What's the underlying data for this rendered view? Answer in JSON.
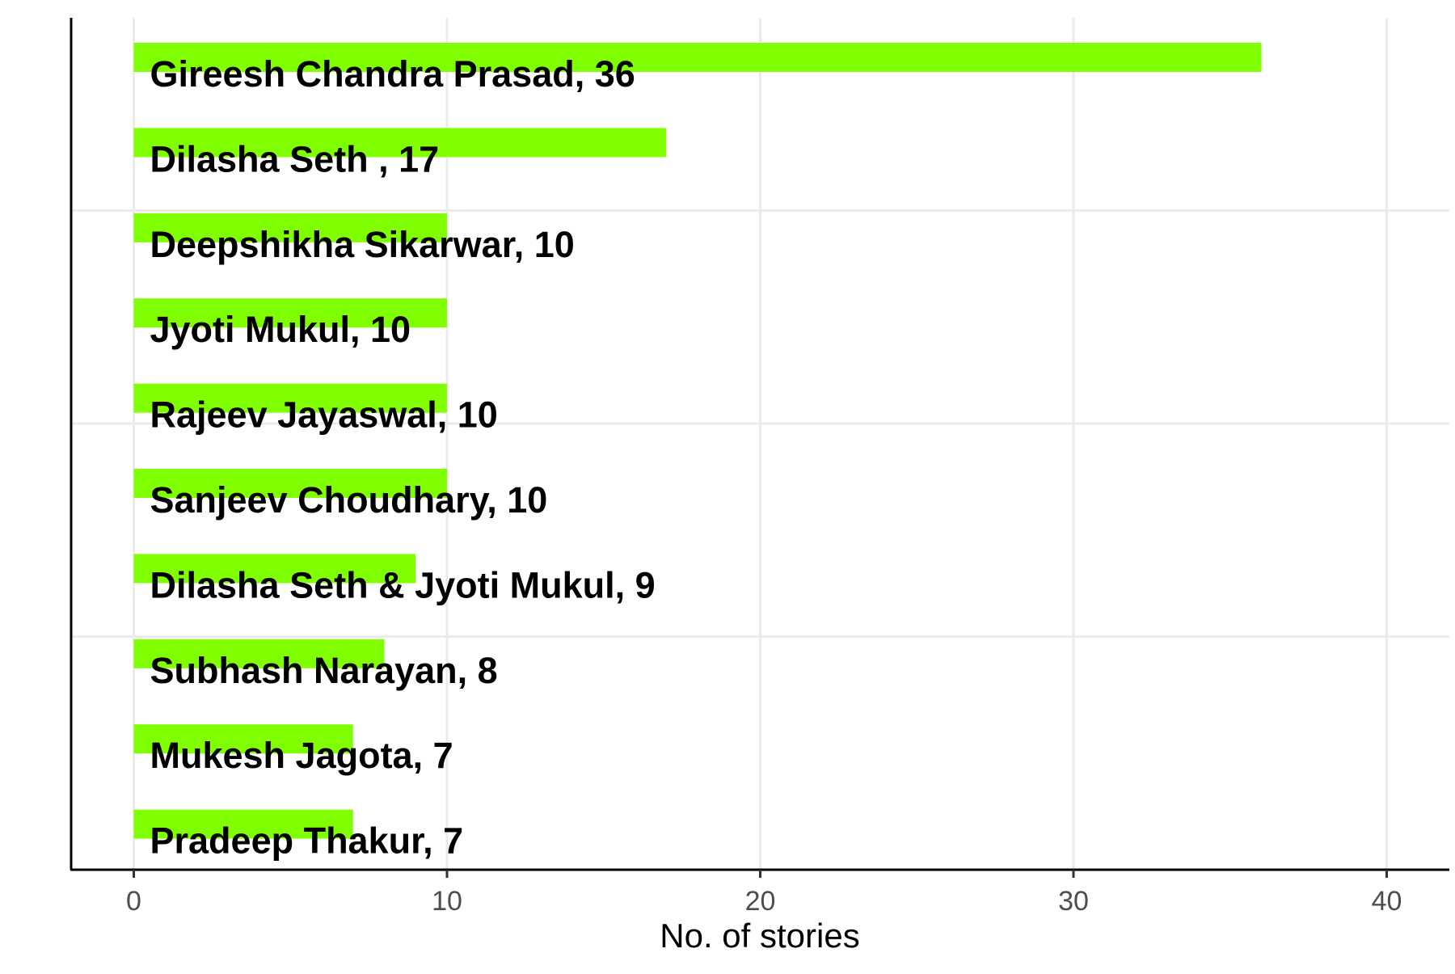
{
  "chart_data": {
    "type": "bar",
    "orientation": "horizontal",
    "categories": [
      "Gireesh Chandra Prasad",
      "Dilasha Seth ",
      "Deepshikha Sikarwar",
      "Jyoti Mukul",
      "Rajeev Jayaswal",
      "Sanjeev Choudhary",
      "Dilasha Seth & Jyoti Mukul",
      "Subhash Narayan",
      "Mukesh Jagota",
      "Pradeep Thakur"
    ],
    "values": [
      36,
      17,
      10,
      10,
      10,
      10,
      9,
      8,
      7,
      7
    ],
    "data_labels": [
      "Gireesh Chandra Prasad, 36",
      "Dilasha Seth , 17",
      "Deepshikha Sikarwar, 10",
      "Jyoti Mukul, 10",
      "Rajeev Jayaswal, 10",
      "Sanjeev Choudhary, 10",
      "Dilasha Seth & Jyoti Mukul, 9",
      "Subhash Narayan, 8",
      "Mukesh Jagota, 7",
      "Pradeep Thakur, 7"
    ],
    "title": "",
    "xlabel": "No. of stories",
    "ylabel": "",
    "xlim": [
      -2,
      42
    ],
    "x_ticks": [
      0,
      10,
      20,
      30,
      40
    ],
    "x_tick_labels": [
      "0",
      "10",
      "20",
      "30",
      "40"
    ],
    "grid": true,
    "legend": "none",
    "bar_color": "#7fff00",
    "grid_color": "#ebebeb",
    "axis_color": "#000000"
  }
}
